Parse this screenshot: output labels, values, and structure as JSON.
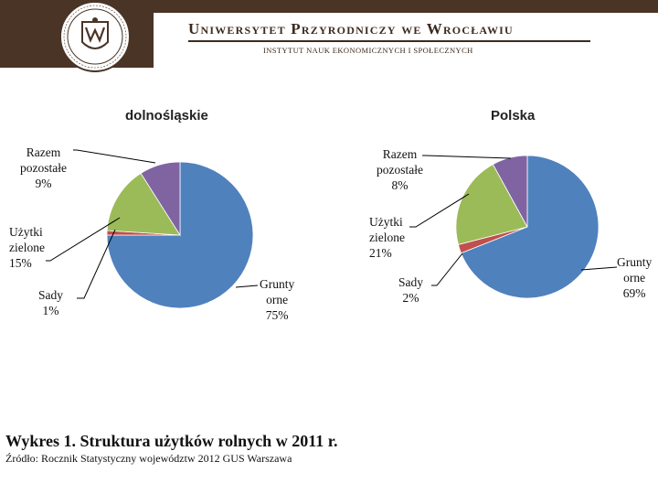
{
  "header": {
    "university": "Uniwersytet Przyrodniczy we Wrocławiu",
    "institute": "INSTYTUT NAUK EKONOMICZNYCH I SPOŁECZNYCH"
  },
  "chart_data": [
    {
      "type": "pie",
      "title": "dolnośląskie",
      "slices": [
        {
          "label": [
            "Grunty",
            "orne",
            "75%"
          ],
          "value": 75,
          "color": "#4f81bd"
        },
        {
          "label": [
            "Sady",
            "1%"
          ],
          "value": 1,
          "color": "#c0504d"
        },
        {
          "label": [
            "Użytki",
            "zielone",
            "15%"
          ],
          "value": 15,
          "color": "#9bbb59"
        },
        {
          "label": [
            "Razem",
            "pozostałe",
            "9%"
          ],
          "value": 9,
          "color": "#8064a2"
        }
      ]
    },
    {
      "type": "pie",
      "title": "Polska",
      "slices": [
        {
          "label": [
            "Grunty",
            "orne",
            "69%"
          ],
          "value": 69,
          "color": "#4f81bd"
        },
        {
          "label": [
            "Sady",
            "2%"
          ],
          "value": 2,
          "color": "#c0504d"
        },
        {
          "label": [
            "Użytki",
            "zielone",
            "21%"
          ],
          "value": 21,
          "color": "#9bbb59"
        },
        {
          "label": [
            "Razem",
            "pozostałe",
            "8%"
          ],
          "value": 8,
          "color": "#8064a2"
        }
      ]
    }
  ],
  "caption": "Wykres 1. Struktura użytków rolnych w 2011 r.",
  "source": "Źródło: Rocznik Statystyczny województw 2012 GUS Warszawa"
}
